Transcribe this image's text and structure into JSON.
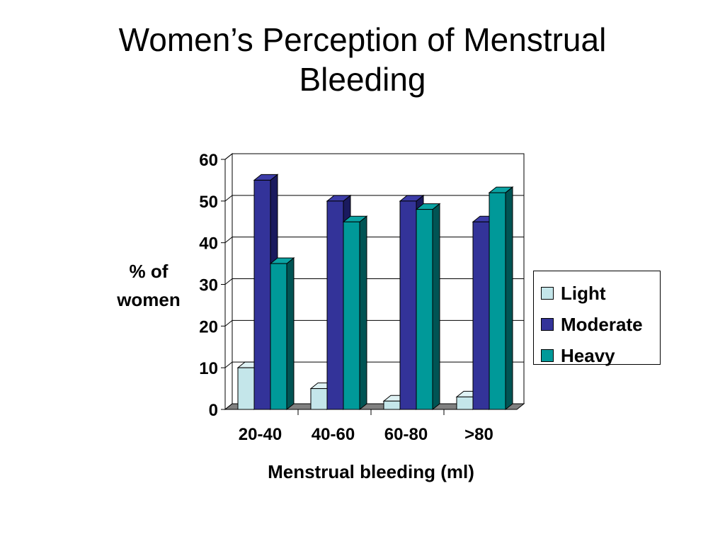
{
  "slide": {
    "title_line1": "Women’s Perception of Menstrual",
    "title_line2": "Bleeding"
  },
  "chart_data": {
    "type": "bar",
    "style": "3d-clustered-column",
    "title": "",
    "xlabel": "Menstrual bleeding (ml)",
    "ylabel_line1": "% of",
    "ylabel_line2": "women",
    "categories": [
      "20-40",
      "40-60",
      "60-80",
      ">80"
    ],
    "series": [
      {
        "name": "Light",
        "values": [
          10,
          5,
          2,
          3
        ],
        "color": "#c4e6ea",
        "side_color": "#8fb5ba",
        "top_color": "#dff2f4"
      },
      {
        "name": "Moderate",
        "values": [
          55,
          50,
          50,
          45
        ],
        "color": "#333399",
        "side_color": "#1a1a5e",
        "top_color": "#3c3ca8"
      },
      {
        "name": "Heavy",
        "values": [
          35,
          45,
          48,
          52
        ],
        "color": "#009999",
        "side_color": "#005454",
        "top_color": "#0aa3a3"
      }
    ],
    "ylim": [
      0,
      60
    ],
    "yticks": [
      "0",
      "10",
      "20",
      "30",
      "40",
      "50",
      "60"
    ],
    "grid": true,
    "legend_position": "right"
  }
}
